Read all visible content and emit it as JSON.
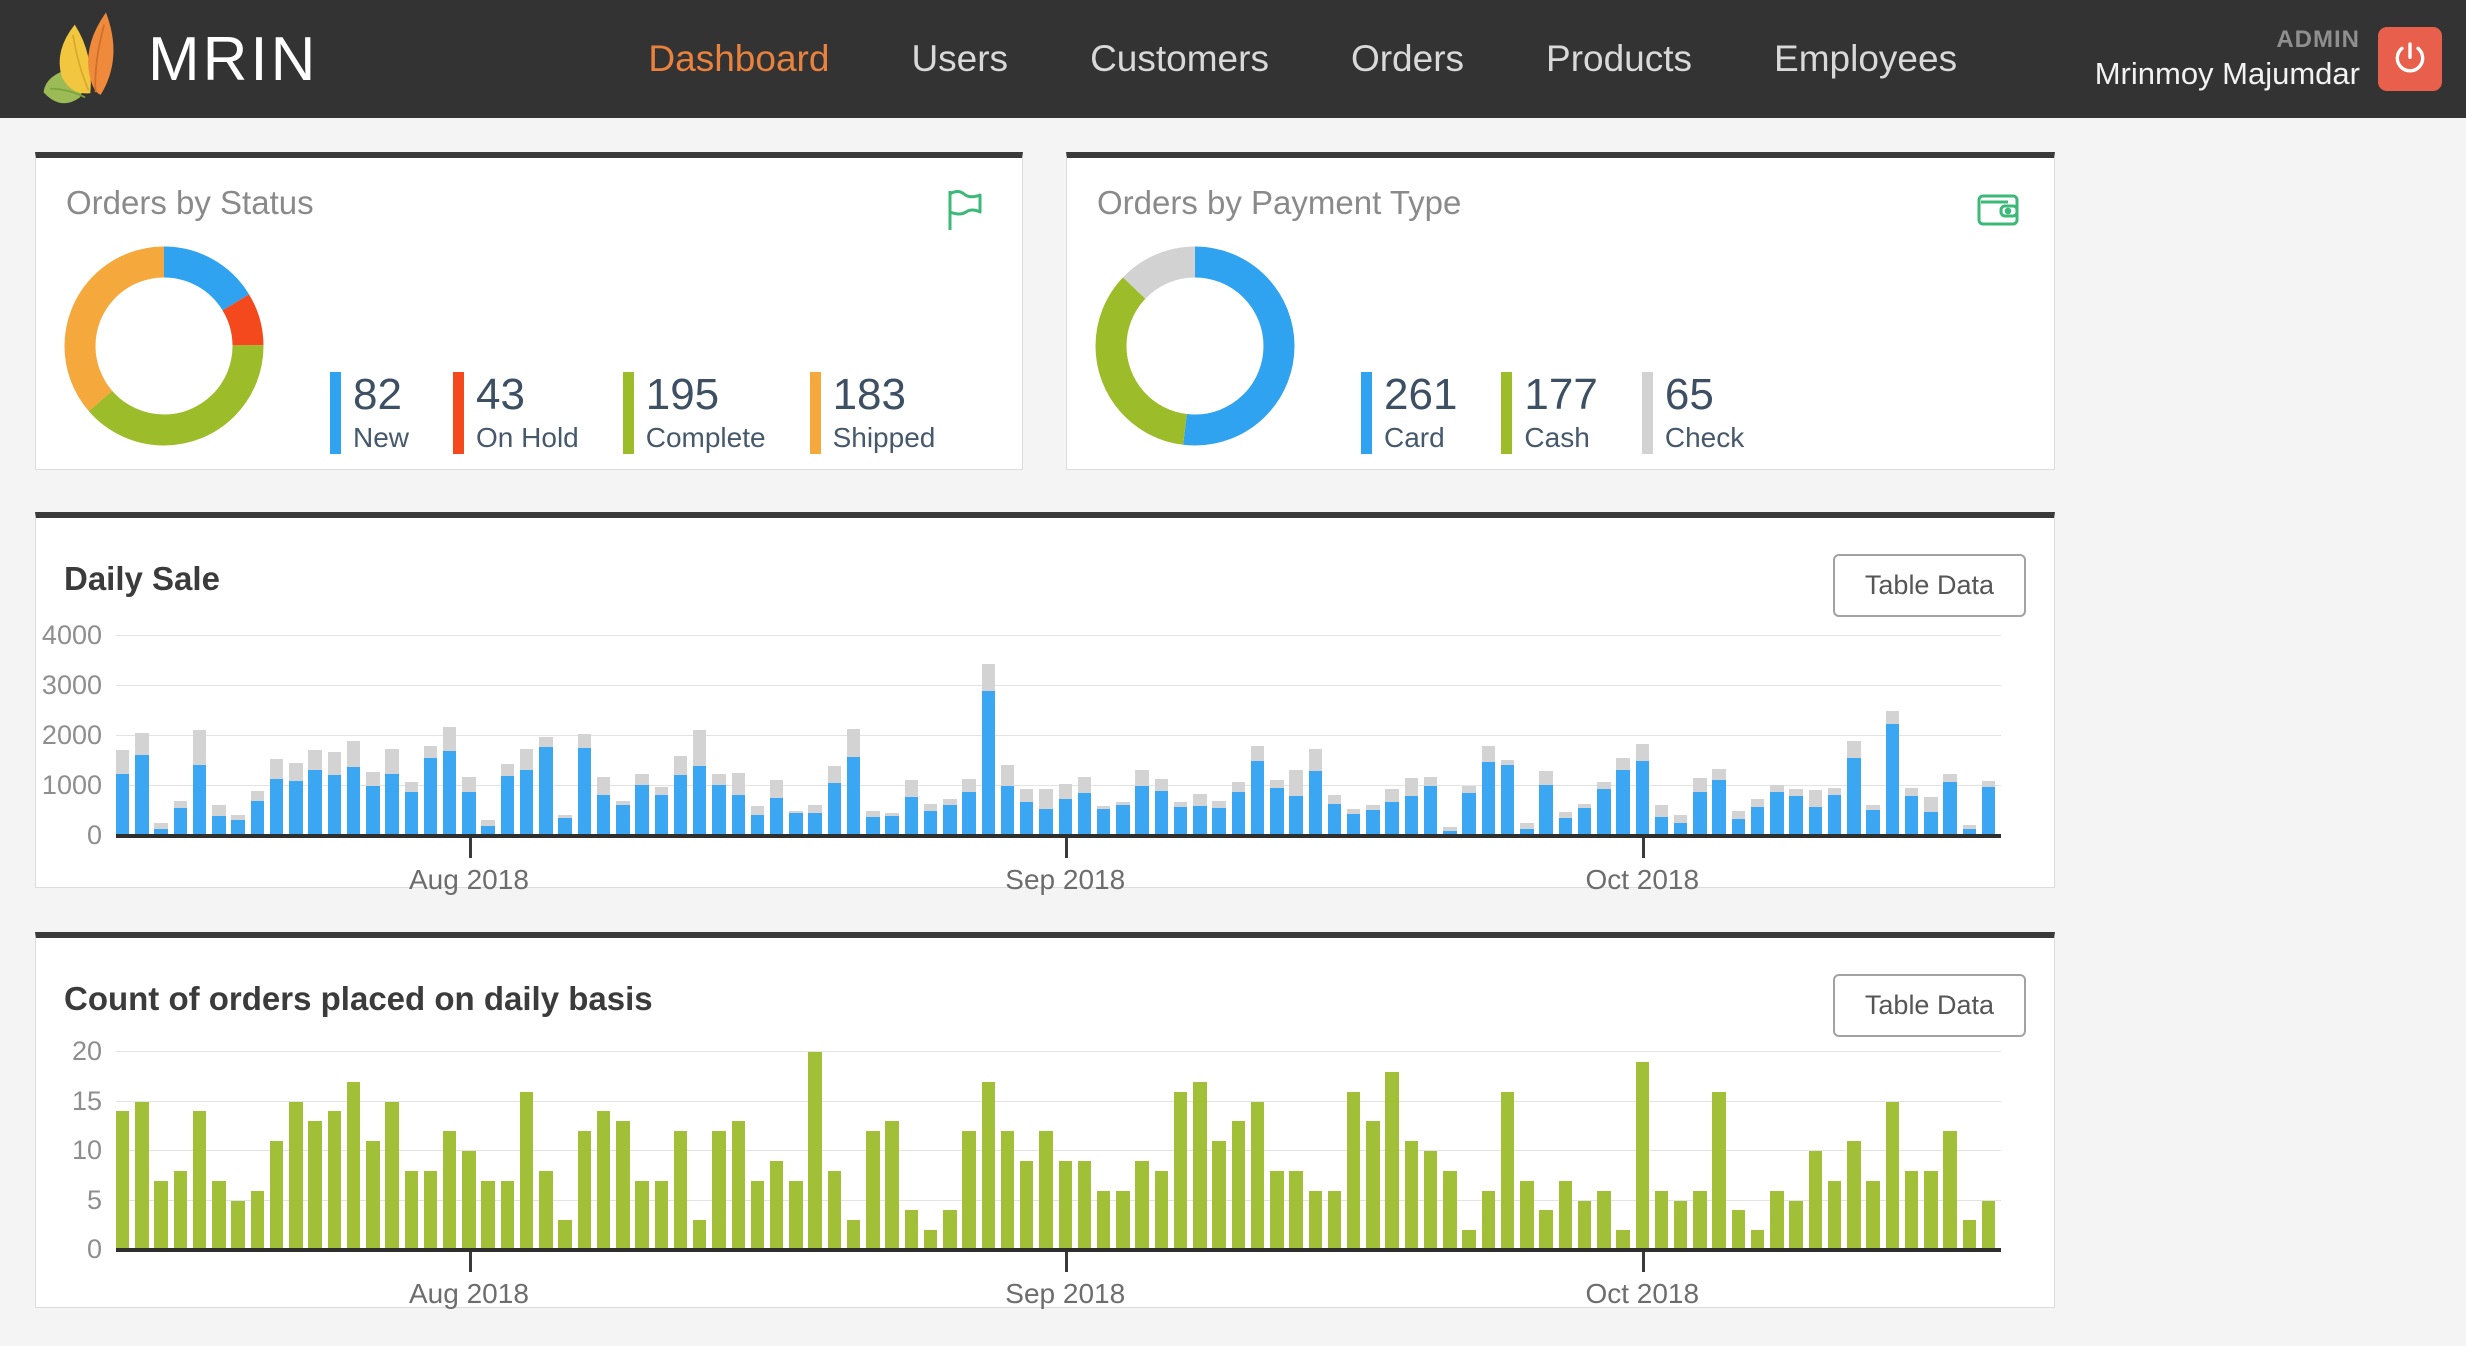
{
  "nav": {
    "brand": "MRIN",
    "items": [
      {
        "label": "Dashboard",
        "active": true
      },
      {
        "label": "Users",
        "active": false
      },
      {
        "label": "Customers",
        "active": false
      },
      {
        "label": "Orders",
        "active": false
      },
      {
        "label": "Products",
        "active": false
      },
      {
        "label": "Employees",
        "active": false
      }
    ],
    "user_role": "ADMIN",
    "user_name": "Mrinmoy Majumdar"
  },
  "buttons": {
    "table_data": "Table Data"
  },
  "colors": {
    "accent": "#E8823D",
    "nav_bg": "#333333",
    "logout": "#E8604C",
    "icon_green": "#3CB878",
    "legend_text": "#3D4F63"
  },
  "chart_data": [
    {
      "type": "pie",
      "subtype": "donut",
      "title": "Orders by Status",
      "labels": [
        "New",
        "On Hold",
        "Complete",
        "Shipped"
      ],
      "values": [
        82,
        43,
        195,
        183
      ],
      "colors": [
        "#2FA3EF",
        "#F4491D",
        "#9CBC29",
        "#F5A83C"
      ],
      "legend_position": "right-bottom"
    },
    {
      "type": "pie",
      "subtype": "donut",
      "title": "Orders by Payment Type",
      "labels": [
        "Card",
        "Cash",
        "Check"
      ],
      "values": [
        261,
        177,
        65
      ],
      "colors": [
        "#2FA3EF",
        "#9CBC29",
        "#D2D2D2"
      ],
      "legend_position": "right-bottom"
    },
    {
      "type": "bar",
      "subtype": "stacked",
      "title": "Daily Sale",
      "ylim": [
        0,
        4000
      ],
      "yticks": [
        0,
        1000,
        2000,
        3000,
        4000
      ],
      "grid": true,
      "x_tick_labels": [
        "Aug 2018",
        "Sep 2018",
        "Oct 2018"
      ],
      "x_tick_indices": [
        18,
        49,
        79
      ],
      "series": [
        {
          "name": "sale",
          "color": "#3BA6F2",
          "values": [
            1250,
            1630,
            140,
            560,
            1430,
            400,
            320,
            710,
            1150,
            1100,
            1330,
            1230,
            1380,
            1010,
            1245,
            880,
            1570,
            1710,
            880,
            200,
            1210,
            1330,
            1780,
            355,
            1760,
            815,
            620,
            1030,
            815,
            1230,
            1395,
            1015,
            815,
            430,
            765,
            465,
            460,
            1060,
            1575,
            380,
            395,
            785,
            500,
            615,
            890,
            2900,
            1005,
            685,
            545,
            735,
            870,
            540,
            615,
            995,
            905,
            590,
            595,
            565,
            880,
            1500,
            955,
            795,
            1310,
            640,
            450,
            530,
            690,
            805,
            1000,
            105,
            865,
            1480,
            1420,
            135,
            1015,
            365,
            570,
            940,
            1330,
            1510,
            385,
            260,
            890,
            1130,
            345,
            580,
            875,
            810,
            590,
            830,
            1565,
            520,
            2250,
            810,
            480,
            1080,
            135,
            990
          ]
        },
        {
          "name": "secondary",
          "color": "#D3D3D3",
          "values": [
            470,
            430,
            120,
            150,
            690,
            220,
            100,
            200,
            390,
            360,
            400,
            460,
            520,
            270,
            490,
            200,
            230,
            480,
            300,
            130,
            240,
            410,
            210,
            65,
            280,
            370,
            85,
            220,
            170,
            375,
            735,
            235,
            450,
            170,
            365,
            35,
            160,
            340,
            560,
            120,
            65,
            330,
            150,
            120,
            250,
            550,
            425,
            250,
            390,
            300,
            315,
            70,
            65,
            325,
            230,
            100,
            240,
            135,
            205,
            305,
            175,
            530,
            430,
            180,
            100,
            95,
            255,
            355,
            175,
            80,
            140,
            320,
            110,
            125,
            285,
            125,
            70,
            150,
            225,
            325,
            235,
            155,
            275,
            210,
            155,
            160,
            155,
            140,
            330,
            125,
            345,
            105,
            250,
            145,
            310,
            160,
            95,
            120
          ]
        }
      ]
    },
    {
      "type": "bar",
      "subtype": "simple",
      "title": "Count of orders placed on daily basis",
      "ylim": [
        0,
        20
      ],
      "yticks": [
        0,
        5,
        10,
        15,
        20
      ],
      "grid": true,
      "x_tick_labels": [
        "Aug 2018",
        "Sep 2018",
        "Oct 2018"
      ],
      "x_tick_indices": [
        18,
        49,
        79
      ],
      "series": [
        {
          "name": "orders",
          "color": "#A2C037",
          "values": [
            14,
            15,
            7,
            8,
            14,
            7,
            5,
            6,
            11,
            15,
            13,
            14,
            17,
            11,
            15,
            8,
            8,
            12,
            10,
            7,
            7,
            16,
            8,
            3,
            12,
            14,
            13,
            7,
            7,
            12,
            3,
            12,
            13,
            7,
            9,
            7,
            20,
            8,
            3,
            12,
            13,
            4,
            2,
            4,
            12,
            17,
            12,
            9,
            12,
            9,
            9,
            6,
            6,
            9,
            8,
            16,
            17,
            11,
            13,
            15,
            8,
            8,
            6,
            6,
            16,
            13,
            18,
            11,
            10,
            8,
            2,
            6,
            16,
            7,
            4,
            7,
            5,
            6,
            2,
            19,
            6,
            5,
            6,
            16,
            4,
            2,
            6,
            5,
            10,
            7,
            11,
            7,
            15,
            8,
            8,
            12,
            3,
            5
          ]
        }
      ]
    }
  ]
}
